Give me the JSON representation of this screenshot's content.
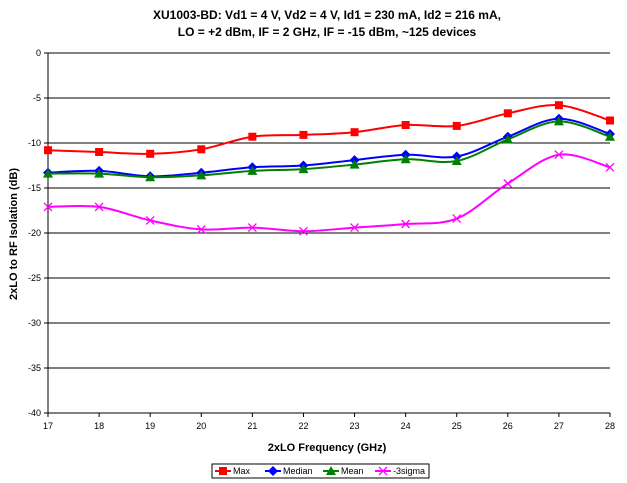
{
  "chart_data": {
    "type": "line",
    "title": "XU1003-BD:  Vd1 = 4 V, Vd2 = 4 V, Id1 = 230 mA, Id2 = 216 mA,",
    "subtitle": "LO = +2 dBm, IF = 2 GHz, IF = -15 dBm, ~125 devices",
    "xlabel": "2xLO Frequency (GHz)",
    "ylabel": "2xLO to RF Isolation (dB)",
    "xlim": [
      17,
      28
    ],
    "ylim": [
      -40,
      0
    ],
    "x_ticks": [
      "17",
      "18",
      "19",
      "20",
      "21",
      "22",
      "23",
      "24",
      "25",
      "26",
      "27",
      "28"
    ],
    "y_ticks": [
      "0",
      "-5",
      "-10",
      "-15",
      "-20",
      "-25",
      "-30",
      "-35",
      "-40"
    ],
    "grid": "horizontal",
    "legend_position": "bottom",
    "x": [
      17,
      18,
      19,
      20,
      21,
      22,
      23,
      24,
      25,
      26,
      27,
      28
    ],
    "series": [
      {
        "name": "Max",
        "color": "#ff0000",
        "marker": "square",
        "values": [
          -10.8,
          -11.0,
          -11.2,
          -10.7,
          -9.3,
          -9.1,
          -8.8,
          -8.0,
          -8.1,
          -6.7,
          -5.8,
          -7.5
        ]
      },
      {
        "name": "Median",
        "color": "#0000ff",
        "marker": "diamond",
        "values": [
          -13.3,
          -13.1,
          -13.7,
          -13.3,
          -12.7,
          -12.5,
          -11.9,
          -11.3,
          -11.5,
          -9.3,
          -7.3,
          -9.0
        ]
      },
      {
        "name": "Mean",
        "color": "#008000",
        "marker": "triangle",
        "values": [
          -13.4,
          -13.4,
          -13.8,
          -13.6,
          -13.1,
          -12.9,
          -12.4,
          -11.8,
          -12.0,
          -9.6,
          -7.6,
          -9.3
        ]
      },
      {
        "name": "-3sigma",
        "color": "#ff00ff",
        "marker": "x",
        "values": [
          -17.1,
          -17.1,
          -18.6,
          -19.6,
          -19.4,
          -19.8,
          -19.4,
          -19.0,
          -18.4,
          -14.5,
          -11.3,
          -12.7
        ]
      }
    ]
  }
}
